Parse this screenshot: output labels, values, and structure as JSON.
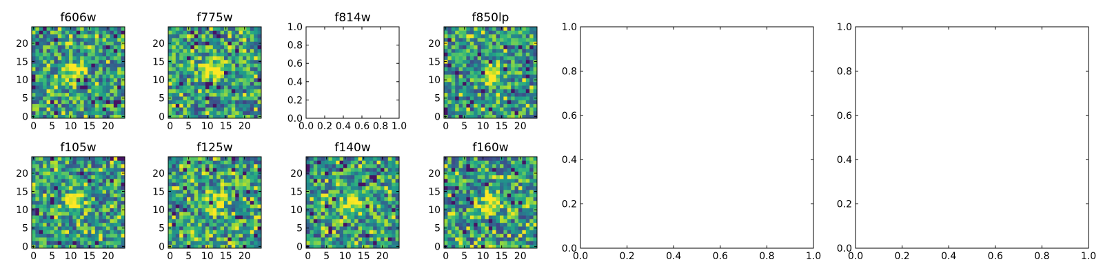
{
  "chart_data": [
    {
      "type": "heatmap",
      "title": "f606w",
      "xlim": [
        -0.5,
        24.5
      ],
      "ylim": [
        -0.5,
        24.5
      ],
      "grid_size": 25,
      "xticks": [
        0,
        5,
        10,
        15,
        20
      ],
      "yticks": [
        0,
        5,
        10,
        15,
        20
      ],
      "peak": [
        11,
        12
      ],
      "cmap": "viridis"
    },
    {
      "type": "heatmap",
      "title": "f775w",
      "xlim": [
        -0.5,
        24.5
      ],
      "ylim": [
        -0.5,
        24.5
      ],
      "grid_size": 25,
      "xticks": [
        0,
        5,
        10,
        15,
        20
      ],
      "yticks": [
        0,
        5,
        10,
        15,
        20
      ],
      "peak": [
        11,
        13
      ],
      "cmap": "viridis"
    },
    {
      "type": "empty",
      "title": "f814w",
      "xlim": [
        0,
        1
      ],
      "ylim": [
        0,
        1
      ],
      "xticks": [
        "0.0",
        "0.2",
        "0.4",
        "0.6",
        "0.8",
        "1.0"
      ],
      "yticks": [
        "0.0",
        "0.2",
        "0.4",
        "0.6",
        "0.8",
        "1.0"
      ]
    },
    {
      "type": "heatmap",
      "title": "f850lp",
      "xlim": [
        -0.5,
        24.5
      ],
      "ylim": [
        -0.5,
        24.5
      ],
      "grid_size": 25,
      "xticks": [
        0,
        5,
        10,
        15,
        20
      ],
      "yticks": [
        0,
        5,
        10,
        15,
        20
      ],
      "peak": [
        12,
        12
      ],
      "cmap": "viridis"
    },
    {
      "type": "heatmap",
      "title": "f105w",
      "xlim": [
        -0.5,
        24.5
      ],
      "ylim": [
        -0.5,
        24.5
      ],
      "grid_size": 25,
      "xticks": [
        0,
        5,
        10,
        15,
        20
      ],
      "yticks": [
        0,
        5,
        10,
        15,
        20
      ],
      "peak": [
        11,
        12
      ],
      "cmap": "viridis"
    },
    {
      "type": "heatmap",
      "title": "f125w",
      "xlim": [
        -0.5,
        24.5
      ],
      "ylim": [
        -0.5,
        24.5
      ],
      "grid_size": 25,
      "xticks": [
        0,
        5,
        10,
        15,
        20
      ],
      "yticks": [
        0,
        5,
        10,
        15,
        20
      ],
      "peak": [
        12,
        12
      ],
      "cmap": "viridis"
    },
    {
      "type": "heatmap",
      "title": "f140w",
      "xlim": [
        -0.5,
        24.5
      ],
      "ylim": [
        -0.5,
        24.5
      ],
      "grid_size": 25,
      "xticks": [
        0,
        5,
        10,
        15,
        20
      ],
      "yticks": [
        0,
        5,
        10,
        15,
        20
      ],
      "peak": [
        12,
        12
      ],
      "cmap": "viridis"
    },
    {
      "type": "heatmap",
      "title": "f160w",
      "xlim": [
        -0.5,
        24.5
      ],
      "ylim": [
        -0.5,
        24.5
      ],
      "grid_size": 25,
      "xticks": [
        0,
        5,
        10,
        15,
        20
      ],
      "yticks": [
        0,
        5,
        10,
        15,
        20
      ],
      "peak": [
        12,
        12
      ],
      "cmap": "viridis"
    },
    {
      "type": "empty",
      "title": "",
      "xlim": [
        0,
        1
      ],
      "ylim": [
        0,
        1
      ],
      "xticks": [
        "0.0",
        "0.2",
        "0.4",
        "0.6",
        "0.8",
        "1.0"
      ],
      "yticks": [
        "0.0",
        "0.2",
        "0.4",
        "0.6",
        "0.8",
        "1.0"
      ]
    },
    {
      "type": "empty",
      "title": "",
      "xlim": [
        0,
        1
      ],
      "ylim": [
        0,
        1
      ],
      "xticks": [
        "0.0",
        "0.2",
        "0.4",
        "0.6",
        "0.8",
        "1.0"
      ],
      "yticks": [
        "0.0",
        "0.2",
        "0.4",
        "0.6",
        "0.8",
        "1.0"
      ]
    }
  ]
}
